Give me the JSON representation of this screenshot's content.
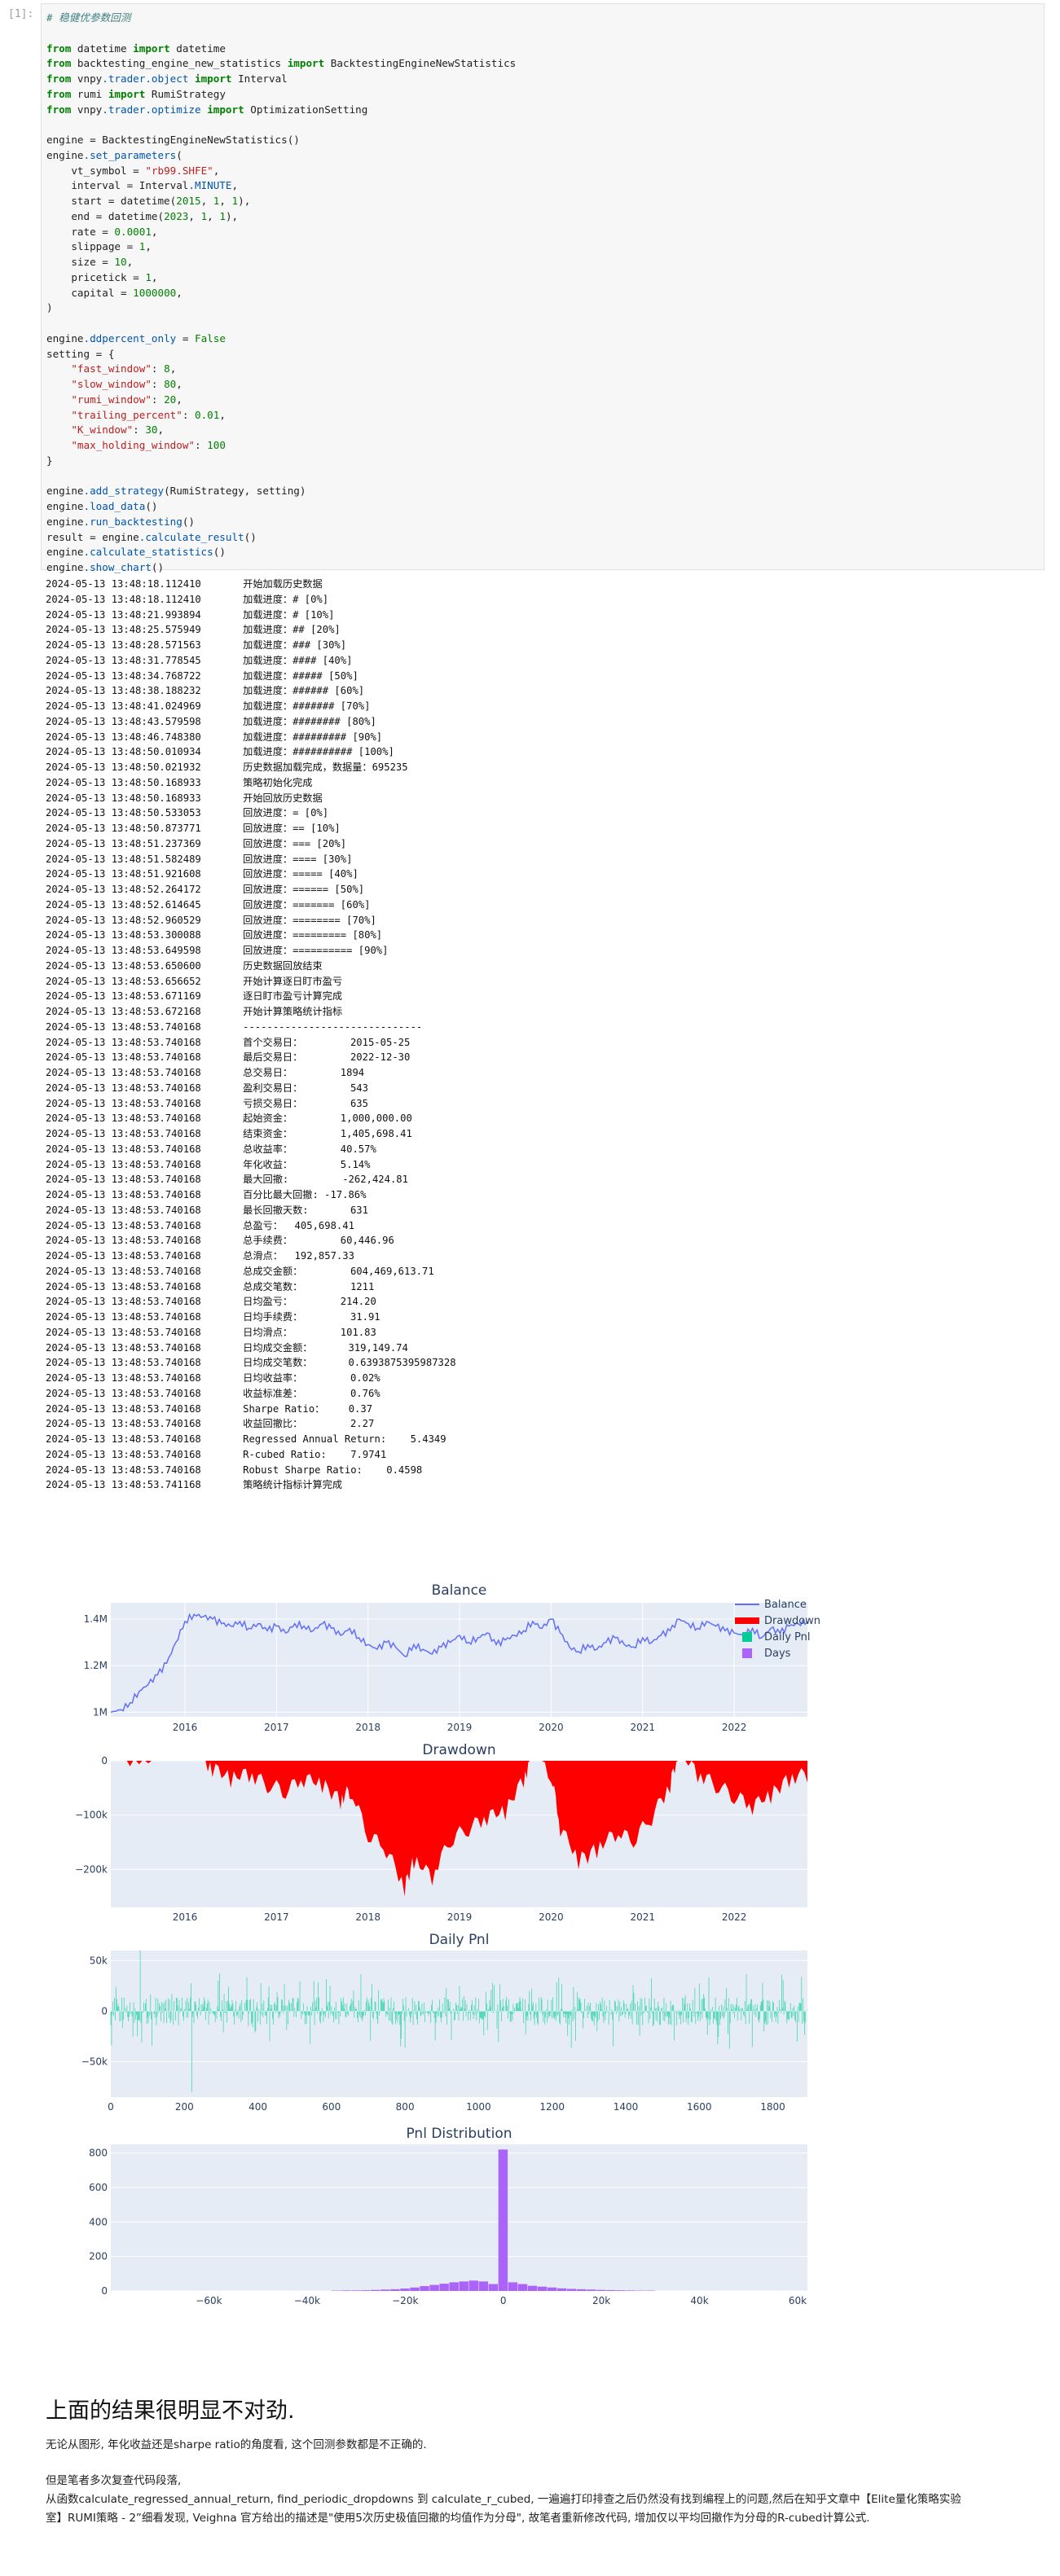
{
  "cell": {
    "prompt": "[1]:"
  },
  "code_lines": [
    [
      [
        "cm",
        "# 稳健优参数回测"
      ]
    ],
    [
      [
        "t",
        ""
      ]
    ],
    [
      [
        "kw",
        "from"
      ],
      [
        "t",
        " datetime "
      ],
      [
        "kw",
        "import"
      ],
      [
        "t",
        " datetime"
      ]
    ],
    [
      [
        "kw",
        "from"
      ],
      [
        "t",
        " backtesting_engine_new_statistics "
      ],
      [
        "kw",
        "import"
      ],
      [
        "t",
        " BacktestingEngineNewStatistics"
      ]
    ],
    [
      [
        "kw",
        "from"
      ],
      [
        "t",
        " vnpy"
      ],
      [
        "fn",
        ".trader.object"
      ],
      [
        "t",
        " "
      ],
      [
        "kw",
        "import"
      ],
      [
        "t",
        " Interval"
      ]
    ],
    [
      [
        "kw",
        "from"
      ],
      [
        "t",
        " rumi "
      ],
      [
        "kw",
        "import"
      ],
      [
        "t",
        " RumiStrategy"
      ]
    ],
    [
      [
        "kw",
        "from"
      ],
      [
        "t",
        " vnpy"
      ],
      [
        "fn",
        ".trader.optimize"
      ],
      [
        "t",
        " "
      ],
      [
        "kw",
        "import"
      ],
      [
        "t",
        " OptimizationSetting"
      ]
    ],
    [
      [
        "t",
        ""
      ]
    ],
    [
      [
        "t",
        "engine = BacktestingEngineNewStatistics()"
      ]
    ],
    [
      [
        "t",
        "engine"
      ],
      [
        "fn",
        ".set_parameters"
      ],
      [
        "t",
        "("
      ]
    ],
    [
      [
        "t",
        "    vt_symbol = "
      ],
      [
        "str",
        "\"rb99.SHFE\""
      ],
      [
        "t",
        ","
      ]
    ],
    [
      [
        "t",
        "    interval = Interval"
      ],
      [
        "fn",
        ".MINUTE"
      ],
      [
        "t",
        ","
      ]
    ],
    [
      [
        "t",
        "    start = datetime("
      ],
      [
        "num",
        "2015"
      ],
      [
        "t",
        ", "
      ],
      [
        "num",
        "1"
      ],
      [
        "t",
        ", "
      ],
      [
        "num",
        "1"
      ],
      [
        "t",
        "),"
      ]
    ],
    [
      [
        "t",
        "    end = datetime("
      ],
      [
        "num",
        "2023"
      ],
      [
        "t",
        ", "
      ],
      [
        "num",
        "1"
      ],
      [
        "t",
        ", "
      ],
      [
        "num",
        "1"
      ],
      [
        "t",
        "),"
      ]
    ],
    [
      [
        "t",
        "    rate = "
      ],
      [
        "num",
        "0.0001"
      ],
      [
        "t",
        ","
      ]
    ],
    [
      [
        "t",
        "    slippage = "
      ],
      [
        "num",
        "1"
      ],
      [
        "t",
        ","
      ]
    ],
    [
      [
        "t",
        "    size = "
      ],
      [
        "num",
        "10"
      ],
      [
        "t",
        ","
      ]
    ],
    [
      [
        "t",
        "    pricetick = "
      ],
      [
        "num",
        "1"
      ],
      [
        "t",
        ","
      ]
    ],
    [
      [
        "t",
        "    capital = "
      ],
      [
        "num",
        "1000000"
      ],
      [
        "t",
        ","
      ]
    ],
    [
      [
        "t",
        ")"
      ]
    ],
    [
      [
        "t",
        ""
      ]
    ],
    [
      [
        "t",
        "engine"
      ],
      [
        "fn",
        ".ddpercent_only"
      ],
      [
        "t",
        " = "
      ],
      [
        "bi",
        "False"
      ]
    ],
    [
      [
        "t",
        "setting = {"
      ]
    ],
    [
      [
        "t",
        "    "
      ],
      [
        "str",
        "\"fast_window\""
      ],
      [
        "t",
        ": "
      ],
      [
        "num",
        "8"
      ],
      [
        "t",
        ","
      ]
    ],
    [
      [
        "t",
        "    "
      ],
      [
        "str",
        "\"slow_window\""
      ],
      [
        "t",
        ": "
      ],
      [
        "num",
        "80"
      ],
      [
        "t",
        ","
      ]
    ],
    [
      [
        "t",
        "    "
      ],
      [
        "str",
        "\"rumi_window\""
      ],
      [
        "t",
        ": "
      ],
      [
        "num",
        "20"
      ],
      [
        "t",
        ","
      ]
    ],
    [
      [
        "t",
        "    "
      ],
      [
        "str",
        "\"trailing_percent\""
      ],
      [
        "t",
        ": "
      ],
      [
        "num",
        "0.01"
      ],
      [
        "t",
        ","
      ]
    ],
    [
      [
        "t",
        "    "
      ],
      [
        "str",
        "\"K_window\""
      ],
      [
        "t",
        ": "
      ],
      [
        "num",
        "30"
      ],
      [
        "t",
        ","
      ]
    ],
    [
      [
        "t",
        "    "
      ],
      [
        "str",
        "\"max_holding_window\""
      ],
      [
        "t",
        ": "
      ],
      [
        "num",
        "100"
      ]
    ],
    [
      [
        "t",
        "}"
      ]
    ],
    [
      [
        "t",
        ""
      ]
    ],
    [
      [
        "t",
        "engine"
      ],
      [
        "fn",
        ".add_strategy"
      ],
      [
        "t",
        "(RumiStrategy, setting)"
      ]
    ],
    [
      [
        "t",
        "engine"
      ],
      [
        "fn",
        ".load_data"
      ],
      [
        "t",
        "()"
      ]
    ],
    [
      [
        "t",
        "engine"
      ],
      [
        "fn",
        ".run_backtesting"
      ],
      [
        "t",
        "()"
      ]
    ],
    [
      [
        "t",
        "result = engine"
      ],
      [
        "fn",
        ".calculate_result"
      ],
      [
        "t",
        "()"
      ]
    ],
    [
      [
        "t",
        "engine"
      ],
      [
        "fn",
        ".calculate_statistics"
      ],
      [
        "t",
        "()"
      ]
    ],
    [
      [
        "t",
        "engine"
      ],
      [
        "fn",
        ".show_chart"
      ],
      [
        "t",
        "()"
      ]
    ]
  ],
  "log_lines": [
    "2024-05-13 13:48:18.112410\t开始加载历史数据",
    "2024-05-13 13:48:18.112410\t加载进度：# [0%]",
    "2024-05-13 13:48:21.993894\t加载进度：# [10%]",
    "2024-05-13 13:48:25.575949\t加载进度：## [20%]",
    "2024-05-13 13:48:28.571563\t加载进度：### [30%]",
    "2024-05-13 13:48:31.778545\t加载进度：#### [40%]",
    "2024-05-13 13:48:34.768722\t加载进度：##### [50%]",
    "2024-05-13 13:48:38.188232\t加载进度：###### [60%]",
    "2024-05-13 13:48:41.024969\t加载进度：####### [70%]",
    "2024-05-13 13:48:43.579598\t加载进度：######## [80%]",
    "2024-05-13 13:48:46.748380\t加载进度：######### [90%]",
    "2024-05-13 13:48:50.010934\t加载进度：########## [100%]",
    "2024-05-13 13:48:50.021932\t历史数据加载完成，数据量：695235",
    "2024-05-13 13:48:50.168933\t策略初始化完成",
    "2024-05-13 13:48:50.168933\t开始回放历史数据",
    "2024-05-13 13:48:50.533053\t回放进度：= [0%]",
    "2024-05-13 13:48:50.873771\t回放进度：== [10%]",
    "2024-05-13 13:48:51.237369\t回放进度：=== [20%]",
    "2024-05-13 13:48:51.582489\t回放进度：==== [30%]",
    "2024-05-13 13:48:51.921608\t回放进度：===== [40%]",
    "2024-05-13 13:48:52.264172\t回放进度：====== [50%]",
    "2024-05-13 13:48:52.614645\t回放进度：======= [60%]",
    "2024-05-13 13:48:52.960529\t回放进度：======== [70%]",
    "2024-05-13 13:48:53.300088\t回放进度：========= [80%]",
    "2024-05-13 13:48:53.649598\t回放进度：========== [90%]",
    "2024-05-13 13:48:53.650600\t历史数据回放结束",
    "2024-05-13 13:48:53.656652\t开始计算逐日盯市盈亏",
    "2024-05-13 13:48:53.671169\t逐日盯市盈亏计算完成",
    "2024-05-13 13:48:53.672168\t开始计算策略统计指标",
    "2024-05-13 13:48:53.740168\t------------------------------",
    "2024-05-13 13:48:53.740168\t首个交易日：\t2015-05-25",
    "2024-05-13 13:48:53.740168\t最后交易日：\t2022-12-30",
    "2024-05-13 13:48:53.740168\t总交易日：\t1894",
    "2024-05-13 13:48:53.740168\t盈利交易日：\t543",
    "2024-05-13 13:48:53.740168\t亏损交易日：\t635",
    "2024-05-13 13:48:53.740168\t起始资金：\t1,000,000.00",
    "2024-05-13 13:48:53.740168\t结束资金：\t1,405,698.41",
    "2024-05-13 13:48:53.740168\t总收益率：\t40.57%",
    "2024-05-13 13:48:53.740168\t年化收益：\t5.14%",
    "2024-05-13 13:48:53.740168\t最大回撤: \t-262,424.81",
    "2024-05-13 13:48:53.740168\t百分比最大回撤: -17.86%",
    "2024-05-13 13:48:53.740168\t最长回撤天数: \t631",
    "2024-05-13 13:48:53.740168\t总盈亏：  405,698.41",
    "2024-05-13 13:48:53.740168\t总手续费：\t60,446.96",
    "2024-05-13 13:48:53.740168\t总滑点：  192,857.33",
    "2024-05-13 13:48:53.740168\t总成交金额：\t604,469,613.71",
    "2024-05-13 13:48:53.740168\t总成交笔数：\t1211",
    "2024-05-13 13:48:53.740168\t日均盈亏：\t214.20",
    "2024-05-13 13:48:53.740168\t日均手续费：\t31.91",
    "2024-05-13 13:48:53.740168\t日均滑点：\t101.83",
    "2024-05-13 13:48:53.740168\t日均成交金额：\t319,149.74",
    "2024-05-13 13:48:53.740168\t日均成交笔数：\t0.6393875395987328",
    "2024-05-13 13:48:53.740168\t日均收益率：\t0.02%",
    "2024-05-13 13:48:53.740168\t收益标准差：\t0.76%",
    "2024-05-13 13:48:53.740168\tSharpe Ratio：\t0.37",
    "2024-05-13 13:48:53.740168\t收益回撤比：\t2.27",
    "2024-05-13 13:48:53.740168\tRegressed Annual Return:\t5.4349",
    "2024-05-13 13:48:53.740168\tR-cubed Ratio:\t7.9741",
    "2024-05-13 13:48:53.740168\tRobust Sharpe Ratio:\t0.4598",
    "2024-05-13 13:48:53.741168\t策略统计指标计算完成"
  ],
  "chart_data": [
    {
      "type": "line",
      "title": "Balance",
      "x_ticks": [
        "2016",
        "2017",
        "2018",
        "2019",
        "2020",
        "2021",
        "2022"
      ],
      "y_ticks": [
        "1M",
        "1.2M",
        "1.4M"
      ],
      "ylim": [
        980000,
        1470000
      ],
      "xlim": [
        2015.39,
        2023.0
      ],
      "series": [
        {
          "name": "Balance",
          "x": [
            2015.39,
            2015.5,
            2015.6,
            2015.7,
            2015.8,
            2015.9,
            2016.0,
            2016.1,
            2016.2,
            2016.3,
            2016.4,
            2016.5,
            2016.6,
            2016.7,
            2016.8,
            2016.9,
            2017.0,
            2017.1,
            2017.2,
            2017.3,
            2017.4,
            2017.5,
            2017.6,
            2017.7,
            2017.8,
            2017.9,
            2018.0,
            2018.1,
            2018.2,
            2018.3,
            2018.4,
            2018.5,
            2018.6,
            2018.7,
            2018.8,
            2018.9,
            2019.0,
            2019.1,
            2019.2,
            2019.3,
            2019.4,
            2019.5,
            2019.6,
            2019.7,
            2019.8,
            2019.9,
            2020.0,
            2020.1,
            2020.2,
            2020.3,
            2020.4,
            2020.5,
            2020.6,
            2020.7,
            2020.8,
            2020.9,
            2021.0,
            2021.1,
            2021.2,
            2021.3,
            2021.4,
            2021.5,
            2021.6,
            2021.7,
            2021.8,
            2021.9,
            2022.0,
            2022.1,
            2022.2,
            2022.3,
            2022.4,
            2022.5,
            2022.6,
            2022.7,
            2022.8,
            2022.9,
            2023.0
          ],
          "y": [
            1000000,
            1010000,
            1040000,
            1090000,
            1120000,
            1160000,
            1210000,
            1300000,
            1390000,
            1420000,
            1410000,
            1400000,
            1380000,
            1370000,
            1390000,
            1360000,
            1380000,
            1350000,
            1370000,
            1340000,
            1380000,
            1370000,
            1350000,
            1380000,
            1360000,
            1330000,
            1360000,
            1320000,
            1290000,
            1270000,
            1300000,
            1280000,
            1240000,
            1290000,
            1270000,
            1250000,
            1280000,
            1300000,
            1330000,
            1300000,
            1320000,
            1340000,
            1290000,
            1310000,
            1330000,
            1350000,
            1390000,
            1360000,
            1400000,
            1340000,
            1280000,
            1260000,
            1290000,
            1270000,
            1300000,
            1320000,
            1290000,
            1280000,
            1320000,
            1300000,
            1330000,
            1350000,
            1400000,
            1380000,
            1360000,
            1390000,
            1370000,
            1350000,
            1340000,
            1330000,
            1360000,
            1320000,
            1360000,
            1340000,
            1370000,
            1380000,
            1390000
          ]
        }
      ],
      "legend": [
        "Balance",
        "Drawdown",
        "Daily Pnl",
        "Days"
      ],
      "colors": {
        "balance": "#636efa",
        "drawdown": "#ff0000",
        "daily": "#00cc96",
        "days": "#ab63fa"
      }
    },
    {
      "type": "area",
      "title": "Drawdown",
      "x_ticks": [
        "2016",
        "2017",
        "2018",
        "2019",
        "2020",
        "2021",
        "2022"
      ],
      "y_ticks": [
        "0",
        "−100k",
        "−200k"
      ],
      "ylim": [
        -270000,
        0
      ],
      "xlim": [
        2015.39,
        2023.0
      ],
      "series": [
        {
          "name": "Drawdown",
          "x": [
            2015.39,
            2015.6,
            2015.8,
            2016.0,
            2016.2,
            2016.35,
            2016.5,
            2016.7,
            2016.9,
            2017.1,
            2017.3,
            2017.5,
            2017.7,
            2017.9,
            2018.0,
            2018.2,
            2018.4,
            2018.6,
            2018.7,
            2018.9,
            2019.1,
            2019.3,
            2019.5,
            2019.7,
            2019.9,
            2020.0,
            2020.2,
            2020.3,
            2020.5,
            2020.7,
            2020.9,
            2021.1,
            2021.3,
            2021.5,
            2021.6,
            2021.8,
            2022.0,
            2022.2,
            2022.4,
            2022.6,
            2022.8,
            2023.0
          ],
          "y": [
            0,
            -10000,
            -5000,
            0,
            0,
            0,
            -30000,
            -50000,
            -40000,
            -60000,
            -70000,
            -50000,
            -60000,
            -90000,
            -70000,
            -150000,
            -180000,
            -250000,
            -200000,
            -230000,
            -160000,
            -140000,
            -120000,
            -110000,
            -50000,
            0,
            -40000,
            -140000,
            -200000,
            -180000,
            -150000,
            -160000,
            -120000,
            -60000,
            0,
            -40000,
            -60000,
            -80000,
            -100000,
            -80000,
            -50000,
            -40000
          ]
        }
      ]
    },
    {
      "type": "bar",
      "title": "Daily Pnl",
      "x_ticks": [
        "0",
        "200",
        "400",
        "600",
        "800",
        "1000",
        "1200",
        "1400",
        "1600",
        "1800"
      ],
      "y_ticks": [
        "50k",
        "0",
        "−50k"
      ],
      "xlim": [
        0,
        1894
      ],
      "ylim": [
        -85000,
        60000
      ],
      "series": [
        {
          "name": "Daily Pnl",
          "extremes": {
            "max": 60000,
            "min": -80000
          }
        }
      ]
    },
    {
      "type": "bar",
      "title": "Pnl Distribution",
      "x_ticks": [
        "−60k",
        "−40k",
        "−20k",
        "0",
        "20k",
        "40k",
        "60k"
      ],
      "y_ticks": [
        "0",
        "200",
        "400",
        "600",
        "800"
      ],
      "xlim": [
        -80000,
        62000
      ],
      "ylim": [
        0,
        850
      ],
      "categories": [
        "-34k",
        "-32k",
        "-30k",
        "-28k",
        "-26k",
        "-24k",
        "-22k",
        "-20k",
        "-18k",
        "-16k",
        "-14k",
        "-12k",
        "-10k",
        "-8k",
        "-6k",
        "-4k",
        "-2k",
        "0",
        "2k",
        "4k",
        "6k",
        "8k",
        "10k",
        "12k",
        "14k",
        "16k",
        "18k",
        "20k",
        "22k",
        "24k",
        "26k",
        "28k",
        "30k"
      ],
      "values": [
        2,
        3,
        3,
        4,
        6,
        8,
        10,
        14,
        20,
        28,
        35,
        42,
        50,
        55,
        60,
        55,
        40,
        820,
        50,
        40,
        30,
        25,
        20,
        15,
        12,
        10,
        8,
        6,
        5,
        4,
        3,
        2,
        2
      ]
    }
  ],
  "notes": {
    "heading": "上面的结果很明显不对劲.",
    "p1": "无论从图形, 年化收益还是sharpe ratio的角度看, 这个回测参数都是不正确的.",
    "p2": "但是笔者多次复查代码段落,",
    "p3": "从函数calculate_regressed_annual_return, find_periodic_dropdowns 到 calculate_r_cubed, 一遍遍打印排查之后仍然没有找到编程上的问题,然后在知乎文章中【Elite量化策略实验",
    "p4": "室】RUMI策略 - 2”细看发现, Veighna 官方给出的描述是\"使用5次历史极值回撤的均值作为分母\", 故笔者重新修改代码, 增加仅以平均回撤作为分母的R-cubed计算公式."
  }
}
